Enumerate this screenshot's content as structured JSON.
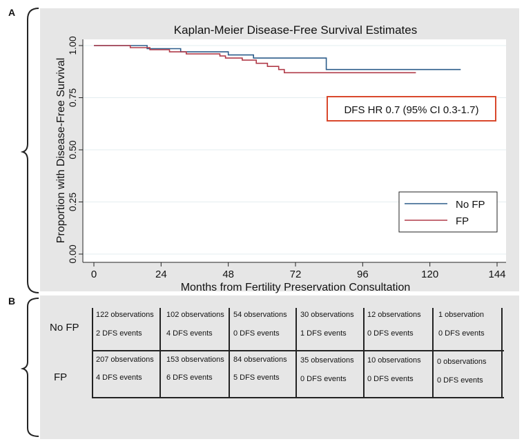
{
  "panel_a_label": "A",
  "panel_b_label": "B",
  "chart_data": {
    "type": "line",
    "title": "Kaplan-Meier Disease-Free Survival Estimates",
    "xlabel": "Months from Fertility Preservation Consultation",
    "ylabel": "Proportion with Disease-Free Survival",
    "xlim": [
      0,
      144
    ],
    "ylim": [
      0,
      1
    ],
    "x_ticks": [
      0,
      24,
      48,
      72,
      96,
      120,
      144
    ],
    "x_tick_labels": [
      "0",
      "24",
      "48",
      "72",
      "96",
      "120",
      "144"
    ],
    "y_ticks": [
      0,
      0.25,
      0.5,
      0.75,
      1.0
    ],
    "y_tick_labels": [
      "0.00",
      "0.25",
      "0.50",
      "0.75",
      "1.00"
    ],
    "grid": true,
    "legend_position": "lower-right",
    "annotation": "DFS HR 0.7 (95% CI 0.3-1.7)",
    "series": [
      {
        "name": "No FP",
        "color": "#2b5c8a",
        "points": [
          [
            0,
            1.0
          ],
          [
            19,
            1.0
          ],
          [
            19,
            0.985
          ],
          [
            31,
            0.985
          ],
          [
            31,
            0.97
          ],
          [
            48,
            0.97
          ],
          [
            48,
            0.955
          ],
          [
            57,
            0.955
          ],
          [
            57,
            0.94
          ],
          [
            83,
            0.94
          ],
          [
            83,
            0.885
          ],
          [
            131,
            0.885
          ]
        ]
      },
      {
        "name": "FP",
        "color": "#b03a48",
        "points": [
          [
            0,
            1.0
          ],
          [
            13,
            1.0
          ],
          [
            13,
            0.99
          ],
          [
            20,
            0.99
          ],
          [
            20,
            0.98
          ],
          [
            27,
            0.98
          ],
          [
            27,
            0.97
          ],
          [
            33,
            0.97
          ],
          [
            33,
            0.96
          ],
          [
            45,
            0.96
          ],
          [
            45,
            0.95
          ],
          [
            47,
            0.95
          ],
          [
            47,
            0.94
          ],
          [
            53,
            0.94
          ],
          [
            53,
            0.93
          ],
          [
            58,
            0.93
          ],
          [
            58,
            0.915
          ],
          [
            62,
            0.915
          ],
          [
            62,
            0.9
          ],
          [
            66,
            0.9
          ],
          [
            66,
            0.885
          ],
          [
            68,
            0.885
          ],
          [
            68,
            0.87
          ],
          [
            115,
            0.87
          ]
        ]
      }
    ]
  },
  "risk_table": {
    "rows": [
      {
        "label": "No FP",
        "cells": [
          {
            "obs": "122 observations",
            "events": "2 DFS events"
          },
          {
            "obs": "102 observations",
            "events": "4 DFS events"
          },
          {
            "obs": "54 observations",
            "events": "0 DFS events"
          },
          {
            "obs": "30 observations",
            "events": "1 DFS events"
          },
          {
            "obs": "12 observations",
            "events": "0 DFS events"
          },
          {
            "obs": "1 observation",
            "events": "0 DFS events"
          }
        ]
      },
      {
        "label": "FP",
        "cells": [
          {
            "obs": "207 observations",
            "events": "4 DFS events"
          },
          {
            "obs": "153 observations",
            "events": "6 DFS events"
          },
          {
            "obs": "84 observations",
            "events": "5 DFS events"
          },
          {
            "obs": "35 observations",
            "events": "0 DFS events"
          },
          {
            "obs": "10 observations",
            "events": "0 DFS events"
          },
          {
            "obs": "0 observations",
            "events": "0 DFS events"
          }
        ]
      }
    ]
  }
}
